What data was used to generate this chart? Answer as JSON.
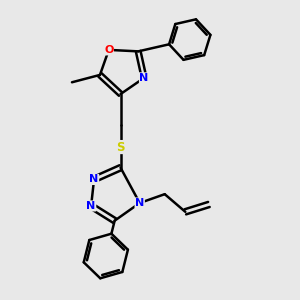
{
  "bg_color": "#e8e8e8",
  "atom_colors": {
    "N": "#0000ff",
    "O": "#ff0000",
    "S": "#cccc00"
  },
  "bond_color": "#000000",
  "bond_width": 1.8,
  "figsize": [
    3.0,
    3.0
  ],
  "dpi": 100,
  "xlim": [
    0,
    10
  ],
  "ylim": [
    0,
    10
  ]
}
